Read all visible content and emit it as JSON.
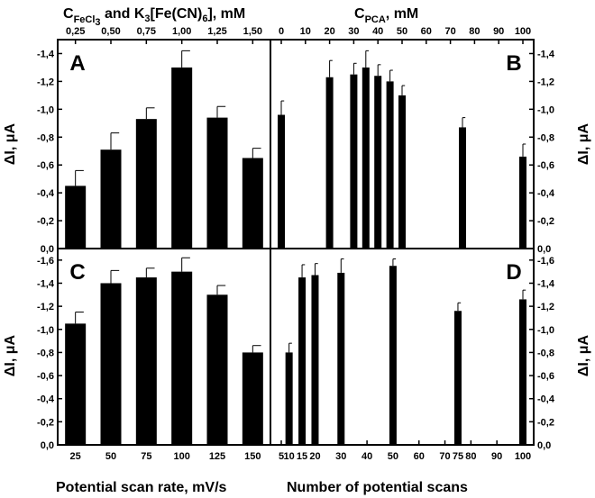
{
  "labels": {
    "top_left_axis": {
      "prefix": "C",
      "sub": "FeCl",
      "sub2": "3",
      "mid": " and K",
      "k3": "3",
      "fe": "[Fe(CN)",
      "cn6": "6",
      "suffix": "], mM"
    },
    "top_right_axis": {
      "prefix": "C",
      "sub": "PCA",
      "suffix": ", mM"
    },
    "bottom_left_axis": "Potential scan rate, mV/s",
    "bottom_right_axis": "Number of potential scans",
    "y_axis": "ΔI, μA"
  },
  "chart_data": [
    {
      "panel": "A",
      "type": "bar",
      "categories": [
        "25",
        "50",
        "75",
        "100",
        "125",
        "150"
      ],
      "secondary_categories": [
        "0,25",
        "0,50",
        "0,75",
        "1,00",
        "1,25",
        "1,50"
      ],
      "values": [
        -0.45,
        -0.71,
        -0.93,
        -1.3,
        -0.94,
        -0.65
      ],
      "errors": [
        0.11,
        0.12,
        0.08,
        0.12,
        0.08,
        0.07
      ],
      "ylim": [
        0,
        -1.5
      ],
      "yticks": [
        "0,0",
        "-0,2",
        "-0,4",
        "-0,6",
        "-0,8",
        "-1,0",
        "-1,2",
        "-1,4"
      ],
      "ylabel": "ΔI, μA"
    },
    {
      "panel": "B",
      "type": "bar",
      "x": [
        0,
        20,
        30,
        35,
        40,
        45,
        50,
        75,
        100
      ],
      "xlim": [
        0,
        100
      ],
      "xticks": [
        "0",
        "10",
        "20",
        "30",
        "40",
        "50",
        "60",
        "70",
        "80",
        "90",
        "100"
      ],
      "values": [
        -0.96,
        -1.23,
        -1.25,
        -1.3,
        -1.24,
        -1.2,
        -1.1,
        -0.87,
        -0.66
      ],
      "errors": [
        0.1,
        0.12,
        0.08,
        0.12,
        0.08,
        0.08,
        0.07,
        0.07,
        0.09
      ],
      "ylim": [
        0,
        -1.5
      ],
      "yticks": [
        "0,0",
        "-0,2",
        "-0,4",
        "-0,6",
        "-0,8",
        "-1,0",
        "-1,2",
        "-1,4"
      ],
      "ylabel": "ΔI, μA"
    },
    {
      "panel": "C",
      "type": "bar",
      "categories": [
        "25",
        "50",
        "75",
        "100",
        "125",
        "150"
      ],
      "values": [
        -1.05,
        -1.4,
        -1.45,
        -1.5,
        -1.3,
        -0.8
      ],
      "errors": [
        0.1,
        0.11,
        0.08,
        0.12,
        0.08,
        0.06
      ],
      "ylim": [
        0,
        -1.7
      ],
      "yticks": [
        "0,0",
        "-0,2",
        "-0,4",
        "-0,6",
        "-0,8",
        "-1,0",
        "-1,2",
        "-1,4",
        "-1,6"
      ],
      "xlabel": "Potential scan rate, mV/s",
      "ylabel": "ΔI, μA"
    },
    {
      "panel": "D",
      "type": "bar",
      "x": [
        10,
        15,
        20,
        30,
        50,
        75,
        100
      ],
      "xlim": [
        7,
        100
      ],
      "xticks": [
        "5",
        "10",
        "15",
        "20",
        "30",
        "40",
        "50",
        "60",
        "70",
        "75",
        "80",
        "90",
        "100"
      ],
      "values": [
        -0.8,
        -1.45,
        -1.47,
        -1.49,
        -1.55,
        -1.16,
        -1.26
      ],
      "errors": [
        0.08,
        0.11,
        0.1,
        0.12,
        0.06,
        0.07,
        0.08
      ],
      "ylim": [
        0,
        -1.7
      ],
      "yticks": [
        "0,0",
        "-0,2",
        "-0,4",
        "-0,6",
        "-0,8",
        "-1,0",
        "-1,2",
        "-1,4",
        "-1,6"
      ],
      "xlabel": "Number of potential scans",
      "ylabel": "ΔI, μA"
    }
  ]
}
